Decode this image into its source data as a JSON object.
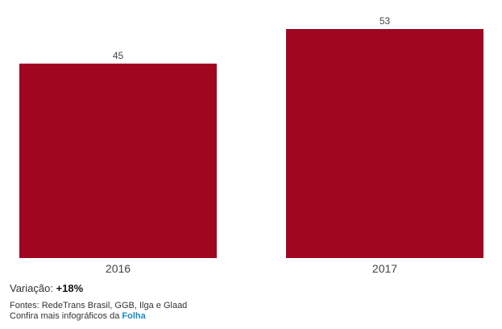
{
  "chart_data": {
    "type": "bar",
    "categories": [
      "2016",
      "2017"
    ],
    "values": [
      45,
      53
    ],
    "title": "",
    "xlabel": "",
    "ylabel": "",
    "ylim": [
      0,
      53
    ],
    "bar_color": "#a0061f",
    "grid": false
  },
  "footer": {
    "variation_label": "Variação:",
    "variation_value": "+18%",
    "sources": "Fontes: RedeTrans Brasil, GGB, Ilga e Glaad",
    "more_text": "Confira mais infográficos da",
    "more_link": "Folha",
    "link_color": "#1a8ac6"
  }
}
